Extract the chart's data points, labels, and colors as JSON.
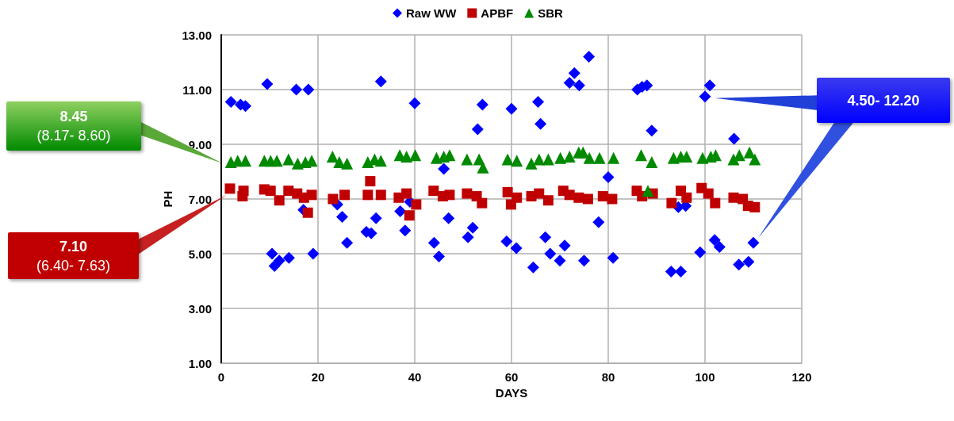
{
  "chart_data": {
    "type": "scatter",
    "xlabel": "DAYS",
    "ylabel": "PH",
    "legend": "top",
    "grid": true,
    "xlim": [
      0,
      120
    ],
    "xticks": [
      0,
      20,
      40,
      60,
      80,
      100,
      120
    ],
    "ylim": [
      1,
      13
    ],
    "yticks": [
      {
        "value": 1,
        "label": "1.00"
      },
      {
        "value": 3,
        "label": "3.00"
      },
      {
        "value": 5,
        "label": "5.00"
      },
      {
        "value": 7,
        "label": "7.00"
      },
      {
        "value": 9,
        "label": "9.00"
      },
      {
        "value": 11,
        "label": "11.00"
      },
      {
        "value": 13,
        "label": "13.00"
      }
    ],
    "annotations": [
      "8.45",
      "(8.17- 8.60)",
      "7.10",
      "(6.40- 7.63)",
      "4.50- 12.20"
    ],
    "series": [
      {
        "name": "Raw WW",
        "color": "#0000ff",
        "marker": "diamond",
        "x": [
          2,
          4,
          5,
          9.5,
          10.5,
          11,
          12,
          14,
          15.5,
          17,
          18,
          19,
          24,
          25,
          26,
          30,
          31,
          32,
          33,
          37,
          38,
          39,
          40,
          44,
          45,
          46,
          47,
          51,
          52,
          53,
          54,
          59,
          60,
          61,
          64.5,
          65.5,
          66,
          67,
          68,
          70,
          71,
          72,
          73,
          74,
          75,
          76,
          78,
          80,
          81,
          86,
          87,
          88,
          89,
          93,
          95,
          94.5,
          96,
          99,
          100,
          101,
          102,
          103,
          106,
          107,
          109,
          110
        ],
        "values": [
          10.55,
          10.45,
          10.4,
          11.2,
          5.0,
          4.55,
          4.75,
          4.85,
          11.0,
          6.6,
          11.0,
          5.0,
          6.8,
          6.35,
          5.4,
          5.8,
          5.75,
          6.3,
          11.3,
          6.55,
          5.85,
          6.9,
          10.5,
          5.4,
          4.9,
          8.1,
          6.3,
          5.6,
          5.95,
          9.55,
          10.45,
          5.45,
          10.3,
          5.2,
          4.5,
          10.55,
          9.75,
          5.6,
          5.0,
          4.75,
          5.3,
          11.25,
          11.6,
          11.15,
          4.75,
          12.2,
          6.15,
          7.8,
          4.85,
          11.0,
          11.1,
          11.15,
          9.5,
          4.35,
          4.35,
          6.7,
          6.75,
          5.05,
          10.75,
          11.15,
          5.5,
          5.25,
          9.2,
          4.6,
          4.7,
          5.4
        ]
      },
      {
        "name": "APBF",
        "color": "#c00000",
        "marker": "square",
        "x": [
          1.8,
          4.6,
          4.4,
          8.9,
          10.2,
          12,
          13.9,
          15.7,
          17.1,
          18.7,
          17.9,
          23.1,
          25.5,
          30.8,
          30.3,
          33,
          36.7,
          38.3,
          38.9,
          40.3,
          43.9,
          45.8,
          47.2,
          50.8,
          52.8,
          53.9,
          59.2,
          59.9,
          61.1,
          64.1,
          65.7,
          67.6,
          70.7,
          72,
          73.9,
          75.8,
          78.9,
          80.8,
          85.9,
          87,
          89.2,
          93.1,
          95,
          96.2,
          99.3,
          100.7,
          102.1,
          105.9,
          107.8,
          108.9,
          110.3
        ],
        "values": [
          7.38,
          7.3,
          7.1,
          7.35,
          7.3,
          6.95,
          7.3,
          7.2,
          7.05,
          7.15,
          6.5,
          7.0,
          7.15,
          7.65,
          7.15,
          7.15,
          7.05,
          7.2,
          6.4,
          6.8,
          7.3,
          7.1,
          7.15,
          7.2,
          7.1,
          6.85,
          7.25,
          6.8,
          7.05,
          7.1,
          7.2,
          6.95,
          7.3,
          7.15,
          7.05,
          7.0,
          7.1,
          7.0,
          7.3,
          7.1,
          7.2,
          6.85,
          7.3,
          7.05,
          7.4,
          7.2,
          6.85,
          7.05,
          7.0,
          6.75,
          6.7
        ]
      },
      {
        "name": "SBR",
        "color": "#008a00",
        "marker": "triangle",
        "x": [
          2,
          3.4,
          5,
          8.9,
          10.2,
          11.5,
          13.9,
          15.8,
          17.4,
          18.7,
          23,
          24.4,
          26,
          30.3,
          31.7,
          33,
          36.9,
          38.3,
          40.1,
          44.5,
          46,
          47.2,
          50.8,
          53.3,
          54.1,
          59.2,
          61.1,
          64.1,
          65.7,
          67.6,
          70.1,
          72,
          73.9,
          74.8,
          76.1,
          78.2,
          81.1,
          86.8,
          88.2,
          89,
          93.5,
          95,
          96.2,
          99.5,
          101.2,
          102.2,
          105.9,
          107.1,
          109.2,
          110.3
        ],
        "values": [
          8.35,
          8.4,
          8.4,
          8.4,
          8.4,
          8.4,
          8.45,
          8.3,
          8.35,
          8.4,
          8.55,
          8.35,
          8.3,
          8.35,
          8.45,
          8.4,
          8.6,
          8.55,
          8.6,
          8.5,
          8.55,
          8.6,
          8.45,
          8.45,
          8.15,
          8.45,
          8.4,
          8.3,
          8.45,
          8.45,
          8.5,
          8.55,
          8.7,
          8.7,
          8.5,
          8.5,
          8.5,
          8.6,
          7.3,
          8.35,
          8.5,
          8.55,
          8.55,
          8.5,
          8.55,
          8.6,
          8.45,
          8.6,
          8.7,
          8.45
        ]
      }
    ]
  }
}
